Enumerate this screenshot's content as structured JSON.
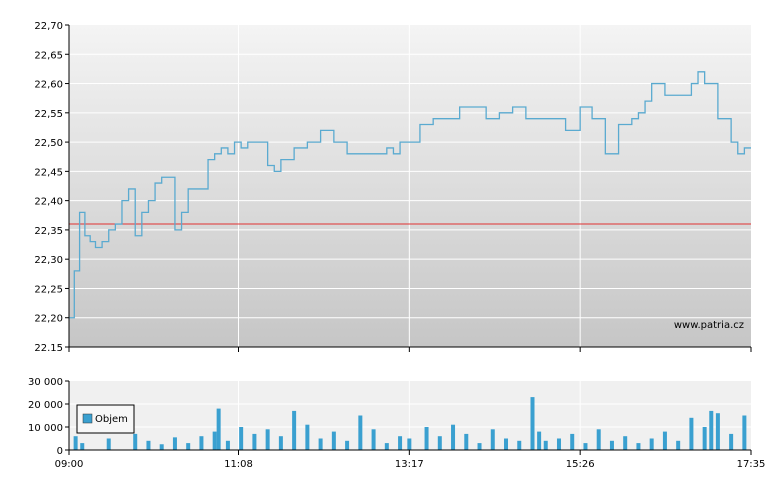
{
  "chart_data": [
    {
      "type": "line",
      "title": "",
      "xlabel": "",
      "ylabel": "",
      "x_tick_labels": [
        "09:00",
        "11:08",
        "13:17",
        "15:26",
        "17:35"
      ],
      "y_tick_labels": [
        "22,70",
        "22,65",
        "22,60",
        "22,55",
        "22,50",
        "22,45",
        "22,40",
        "22,35",
        "22,30",
        "22,25",
        "22,20",
        "22.15"
      ],
      "ylim": [
        22.15,
        22.7
      ],
      "reference_line": 22.36,
      "grid": true,
      "watermark": "www.patria.cz",
      "colors": {
        "line": "#5aaad0",
        "reference": "#e03030",
        "plot_bg_top": "#f4f4f4",
        "plot_bg_bottom": "#c8c8c8",
        "grid": "#ffffff"
      },
      "series": [
        {
          "x": [
            "09:00",
            "09:04",
            "09:08",
            "09:12",
            "09:16",
            "09:20",
            "09:25",
            "09:30",
            "09:35",
            "09:40",
            "09:45",
            "09:50",
            "09:55",
            "10:00",
            "10:05",
            "10:10",
            "10:15",
            "10:20",
            "10:25",
            "10:30",
            "10:35",
            "10:40",
            "10:45",
            "10:50",
            "10:55",
            "11:00",
            "11:05",
            "11:10",
            "11:15",
            "11:20",
            "11:25",
            "11:30",
            "11:35",
            "11:40",
            "11:50",
            "12:00",
            "12:10",
            "12:20",
            "12:30",
            "12:40",
            "12:50",
            "13:00",
            "13:05",
            "13:10",
            "13:17",
            "13:25",
            "13:35",
            "13:45",
            "13:55",
            "14:05",
            "14:15",
            "14:25",
            "14:35",
            "14:45",
            "14:55",
            "15:05",
            "15:15",
            "15:26",
            "15:35",
            "15:45",
            "15:55",
            "16:05",
            "16:10",
            "16:15",
            "16:20",
            "16:30",
            "16:40",
            "16:50",
            "16:55",
            "17:00",
            "17:10",
            "17:20",
            "17:25",
            "17:30",
            "17:35"
          ],
          "y": [
            22.2,
            22.28,
            22.38,
            22.34,
            22.33,
            22.32,
            22.33,
            22.35,
            22.36,
            22.4,
            22.42,
            22.34,
            22.38,
            22.4,
            22.43,
            22.44,
            22.44,
            22.35,
            22.38,
            22.42,
            22.42,
            22.42,
            22.47,
            22.48,
            22.49,
            22.48,
            22.5,
            22.49,
            22.5,
            22.5,
            22.5,
            22.46,
            22.45,
            22.47,
            22.49,
            22.5,
            22.52,
            22.5,
            22.48,
            22.48,
            22.48,
            22.49,
            22.48,
            22.5,
            22.5,
            22.53,
            22.54,
            22.54,
            22.56,
            22.56,
            22.54,
            22.55,
            22.56,
            22.54,
            22.54,
            22.54,
            22.52,
            22.56,
            22.54,
            22.48,
            22.53,
            22.54,
            22.55,
            22.57,
            22.6,
            22.58,
            22.58,
            22.6,
            22.62,
            22.6,
            22.54,
            22.5,
            22.48,
            22.49,
            22.49
          ]
        }
      ]
    },
    {
      "type": "bar",
      "title": "",
      "xlabel": "",
      "ylabel": "",
      "x_tick_labels": [
        "09:00",
        "11:08",
        "13:17",
        "15:26",
        "17:35"
      ],
      "y_tick_labels": [
        "30 000",
        "20 000",
        "10 000",
        "0"
      ],
      "ylim": [
        0,
        30000
      ],
      "legend": {
        "label": "Objem",
        "placement": "left"
      },
      "colors": {
        "bar": "#3aa0d0",
        "plot_bg": "#f0f0f0",
        "grid": "#ffffff"
      },
      "series": [
        {
          "name": "Objem",
          "x": [
            "09:05",
            "09:10",
            "09:30",
            "09:50",
            "10:00",
            "10:10",
            "10:20",
            "10:30",
            "10:40",
            "10:50",
            "10:53",
            "11:00",
            "11:10",
            "11:20",
            "11:30",
            "11:40",
            "11:50",
            "12:00",
            "12:10",
            "12:20",
            "12:30",
            "12:40",
            "12:50",
            "13:00",
            "13:10",
            "13:17",
            "13:30",
            "13:40",
            "13:50",
            "14:00",
            "14:10",
            "14:20",
            "14:30",
            "14:40",
            "14:50",
            "14:55",
            "15:00",
            "15:10",
            "15:20",
            "15:30",
            "15:40",
            "15:50",
            "16:00",
            "16:10",
            "16:20",
            "16:30",
            "16:40",
            "16:50",
            "17:00",
            "17:05",
            "17:10",
            "17:20",
            "17:30"
          ],
          "values": [
            6000,
            3000,
            5000,
            7000,
            4000,
            2500,
            5500,
            3000,
            6000,
            8000,
            18000,
            4000,
            10000,
            7000,
            9000,
            6000,
            17000,
            11000,
            5000,
            8000,
            4000,
            15000,
            9000,
            3000,
            6000,
            5000,
            10000,
            6000,
            11000,
            7000,
            3000,
            9000,
            5000,
            4000,
            23000,
            8000,
            4000,
            5000,
            7000,
            3000,
            9000,
            4000,
            6000,
            3000,
            5000,
            8000,
            4000,
            14000,
            10000,
            17000,
            16000,
            7000,
            15000
          ]
        }
      ]
    }
  ]
}
